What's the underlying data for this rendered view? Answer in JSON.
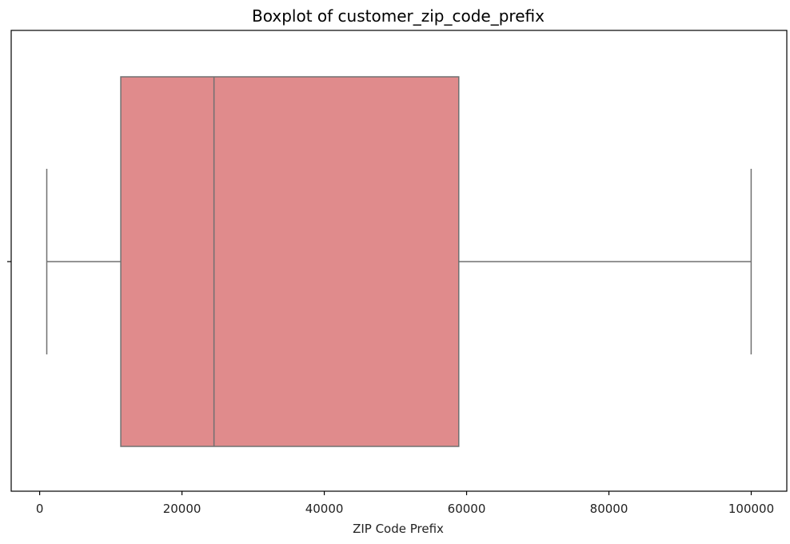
{
  "chart_data": {
    "type": "boxplot",
    "title": "Boxplot of customer_zip_code_prefix",
    "xlabel": "ZIP Code Prefix",
    "ylabel": "",
    "orientation": "horizontal",
    "xlim": [
      -4000,
      105000
    ],
    "xticks": [
      0,
      20000,
      40000,
      60000,
      80000,
      100000
    ],
    "xtick_labels": [
      "0",
      "20000",
      "40000",
      "60000",
      "80000",
      "100000"
    ],
    "grid": false,
    "box": {
      "whisker_low": 1000,
      "q1": 11400,
      "median": 24500,
      "q3": 58900,
      "whisker_high": 99990
    },
    "colors": {
      "box_fill": "#e08b8c",
      "line": "#707070",
      "axes": "#000000"
    }
  }
}
